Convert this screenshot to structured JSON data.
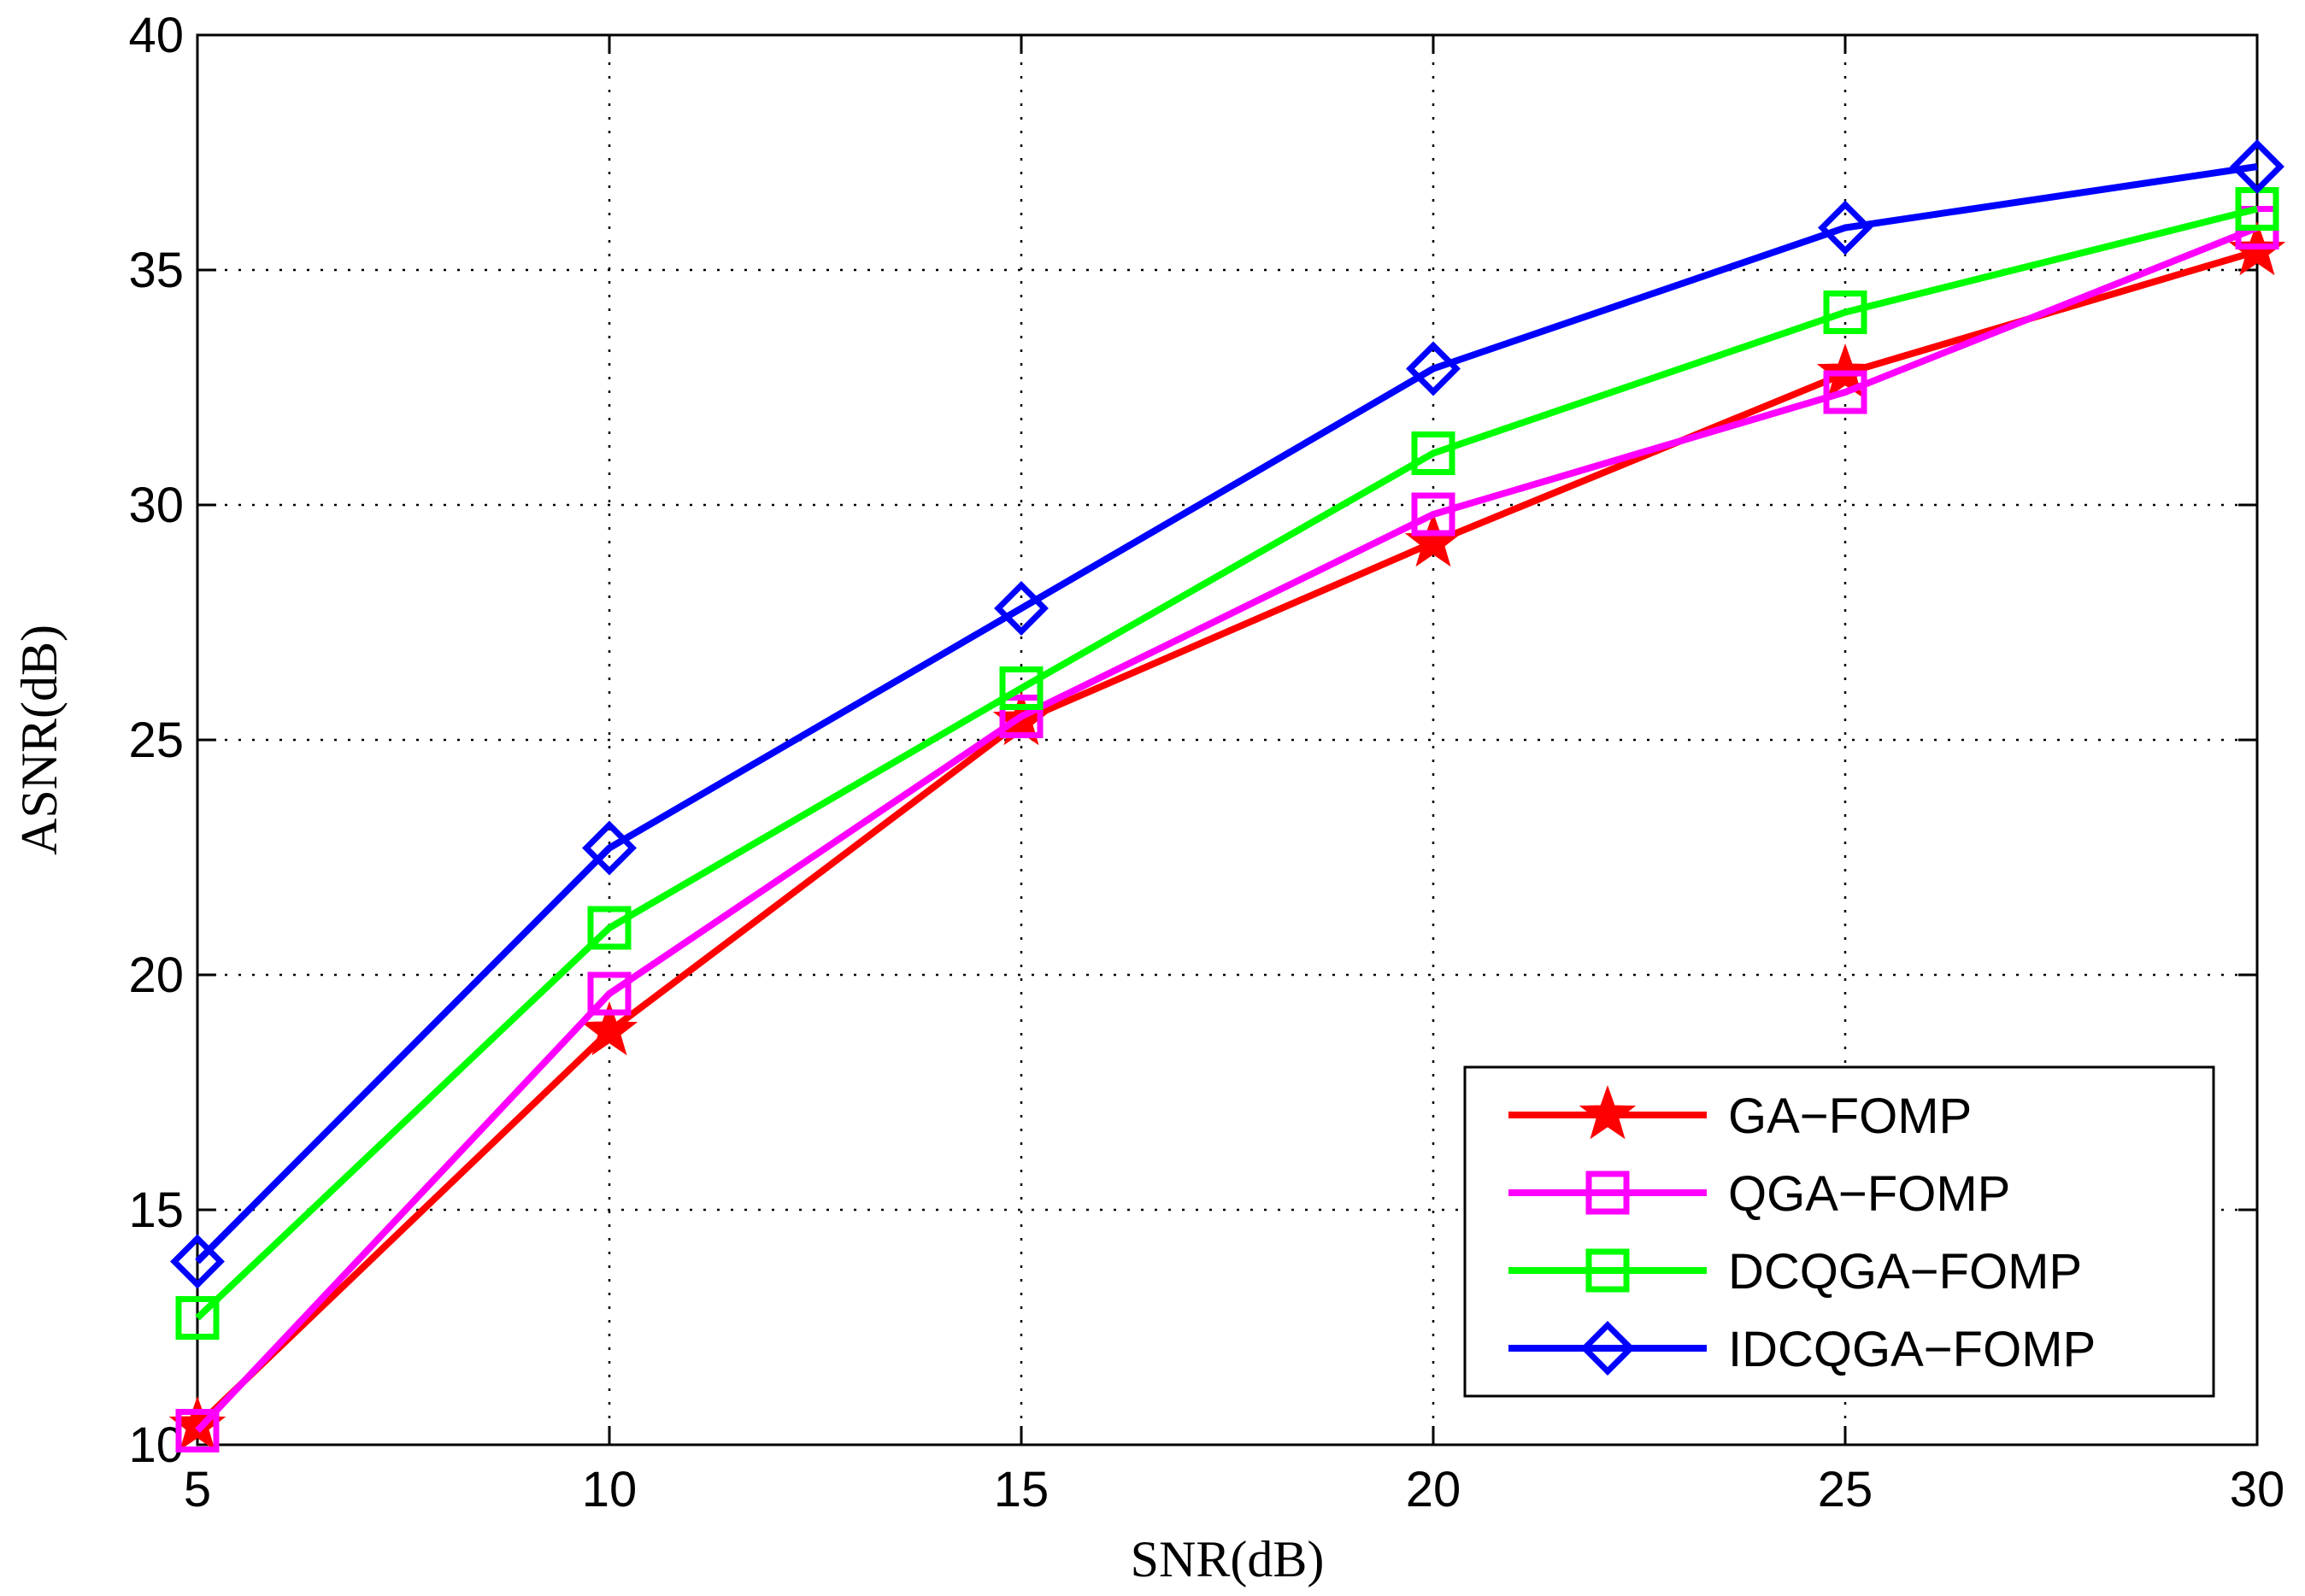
{
  "chart_data": {
    "type": "line",
    "title": "",
    "xlabel": "SNR(dB)",
    "ylabel": "ASNR(dB)",
    "x": [
      5,
      10,
      15,
      20,
      25,
      30
    ],
    "xlim": [
      5,
      30
    ],
    "ylim": [
      10,
      40
    ],
    "xticks": [
      "5",
      "10",
      "15",
      "20",
      "25",
      "30"
    ],
    "yticks": [
      "10",
      "15",
      "20",
      "25",
      "30",
      "35",
      "40"
    ],
    "grid": true,
    "legend_position": "bottom-right",
    "series": [
      {
        "name": "GA−FOMP",
        "color": "#ff0000",
        "marker": "star",
        "values": [
          10.4,
          18.8,
          25.4,
          29.2,
          32.8,
          35.4
        ]
      },
      {
        "name": "QGA−FOMP",
        "color": "#ff00ff",
        "marker": "square",
        "values": [
          10.3,
          19.6,
          25.5,
          29.8,
          32.4,
          35.9
        ]
      },
      {
        "name": "DCQGA−FOMP",
        "color": "#00ff00",
        "marker": "square",
        "values": [
          12.7,
          21.0,
          26.1,
          31.1,
          34.1,
          36.3
        ]
      },
      {
        "name": "IDCQGA−FOMP",
        "color": "#0000ff",
        "marker": "diamond",
        "values": [
          13.9,
          22.7,
          27.8,
          32.9,
          35.9,
          37.2
        ]
      }
    ]
  }
}
